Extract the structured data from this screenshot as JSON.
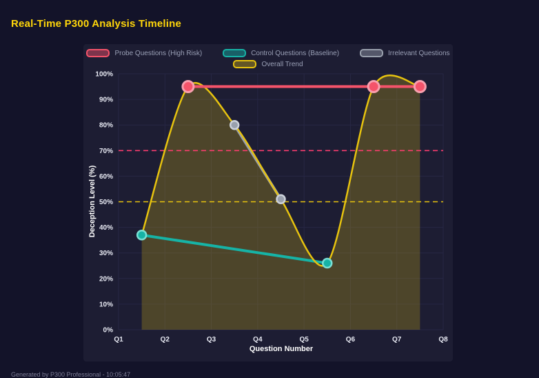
{
  "page": {
    "title": "Real-Time P300 Analysis Timeline",
    "footer": "Generated by P300 Professional - 10:05:47"
  },
  "colors": {
    "background": "#131329",
    "panel": "#1d1d33",
    "grid": "#272744",
    "title": "#ffd60a",
    "tick_text": "#e9ebf4",
    "legend_text": "#9aa0b6"
  },
  "chart_data": {
    "type": "line",
    "title": "",
    "xlabel": "Question Number",
    "ylabel": "Deception Level (%)",
    "x_ticks": [
      "Q1",
      "Q2",
      "Q3",
      "Q4",
      "Q5",
      "Q6",
      "Q7",
      "Q8"
    ],
    "x_range": [
      1,
      8
    ],
    "ylim": [
      0,
      100
    ],
    "y_ticks": [
      "0%",
      "10%",
      "20%",
      "30%",
      "40%",
      "50%",
      "60%",
      "70%",
      "80%",
      "90%",
      "100%"
    ],
    "grid": true,
    "legend_position": "top",
    "series": [
      {
        "id": "probe",
        "name": "Probe Questions (High Risk)",
        "color": "#f4536a",
        "legend_fill": "rgba(244,83,106,0.45)",
        "points": [
          [
            2.5,
            95
          ],
          [
            6.5,
            95
          ],
          [
            7.5,
            95
          ]
        ],
        "width": 4,
        "point_radius": 8,
        "point_stroke": "#f79fae",
        "point_stroke_width": 3,
        "z": 4
      },
      {
        "id": "control",
        "name": "Control Questions (Baseline)",
        "color": "#16b3a6",
        "legend_fill": "rgba(22,179,166,0.45)",
        "points": [
          [
            1.5,
            37
          ],
          [
            5.5,
            26
          ]
        ],
        "width": 4,
        "point_radius": 6.5,
        "point_stroke": "#7adfd4",
        "point_stroke_width": 2.5,
        "z": 2
      },
      {
        "id": "irrelevant",
        "name": "Irrelevant Questions",
        "color": "#99a0ad",
        "legend_fill": "rgba(153,160,173,0.45)",
        "points": [
          [
            3.5,
            80
          ],
          [
            4.5,
            51
          ]
        ],
        "width": 4,
        "point_radius": 6,
        "point_stroke": "#ccd1da",
        "point_stroke_width": 2.5,
        "z": 1
      },
      {
        "id": "trend",
        "name": "Overall Trend",
        "color": "#e7c30f",
        "legend_fill": "rgba(231,195,15,0.35)",
        "points": [
          [
            1.5,
            37
          ],
          [
            2.5,
            95
          ],
          [
            3.5,
            80
          ],
          [
            4.5,
            51
          ],
          [
            5.5,
            26
          ],
          [
            6.5,
            95
          ],
          [
            7.5,
            95
          ]
        ],
        "width": 2.5,
        "smooth": true,
        "fill": true,
        "fill_color": "rgba(231,195,15,0.24)",
        "z": 3
      }
    ],
    "thresholds": [
      {
        "name": "high-risk-threshold-line",
        "value": 70,
        "color": "#fb3d6e"
      },
      {
        "name": "baseline-threshold-line",
        "value": 50,
        "color": "#e7c30f"
      }
    ],
    "legend_rows": [
      [
        0,
        1,
        2
      ],
      [
        3
      ]
    ]
  }
}
